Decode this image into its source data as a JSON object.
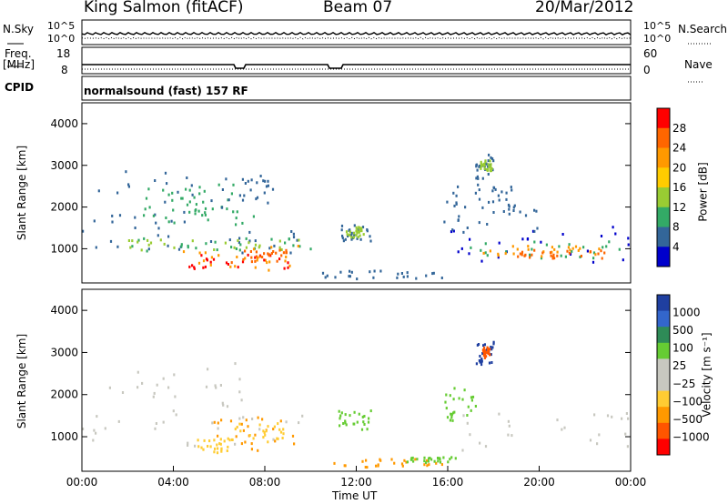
{
  "header": {
    "station": "King Salmon (fitACF)",
    "beam": "Beam 07",
    "date": "20/Mar/2012"
  },
  "status_panels": {
    "nsky_label": "N.Sky",
    "nsearch_label": "N.Search",
    "freq_label_1": "Freq.",
    "freq_label_2": "[MHz]",
    "nave_label": "Nave",
    "cpid_label": "CPID",
    "noise_ticks_left": [
      "10^5",
      "10^0"
    ],
    "noise_ticks_right": [
      "10^5",
      "10^0"
    ],
    "freq_ticks": [
      "18",
      "8"
    ],
    "nave_ticks": [
      "60",
      "0"
    ],
    "cpid_text": "normalsound (fast) 157 RF"
  },
  "chart_data": [
    {
      "type": "heatmap",
      "name": "power",
      "ylabel": "Slant Range [km]",
      "y_ticks": [
        "4000",
        "3000",
        "2000",
        "1000"
      ],
      "colorbar_label": "Power [dB]",
      "colorbar_ticks": [
        "28",
        "24",
        "20",
        "16",
        "12",
        "8",
        "4"
      ],
      "colors": [
        "#ff0000",
        "#ff6600",
        "#ff9900",
        "#ffcc00",
        "#99cc33",
        "#33aa66",
        "#336699",
        "#0000cc"
      ]
    },
    {
      "type": "heatmap",
      "name": "velocity",
      "ylabel": "Slant Range [km]",
      "y_ticks": [
        "4000",
        "3000",
        "2000",
        "1000"
      ],
      "colorbar_label": "Velocity [m s⁻¹]",
      "colorbar_ticks": [
        "1000",
        "500",
        "100",
        "25",
        "−25",
        "−100",
        "−500",
        "−1000"
      ],
      "colors": [
        "#1f3fa0",
        "#3366cc",
        "#2e8b57",
        "#66cc33",
        "#c8c8c0",
        "#c8c8c0",
        "#ffcc33",
        "#ff9900",
        "#ff5500",
        "#ff0000"
      ]
    }
  ],
  "x_axis": {
    "ticks": [
      "00:00",
      "04:00",
      "08:00",
      "12:00",
      "16:00",
      "20:00",
      "00:00"
    ],
    "label": "Time UT"
  }
}
